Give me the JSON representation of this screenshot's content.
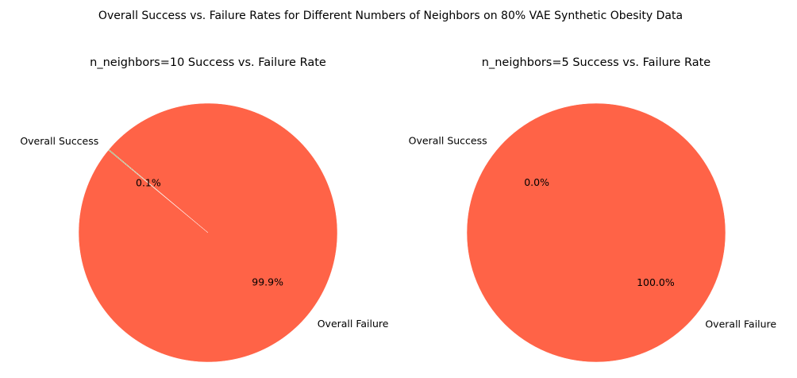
{
  "figure": {
    "suptitle": "Overall Success vs. Failure Rates for Different Numbers of Neighbors on 80% VAE Synthetic Obesity Data"
  },
  "colors": {
    "success": "#2ca02c",
    "failure": "#ff6347",
    "edge": "#ffffff"
  },
  "chart_data": [
    {
      "type": "pie",
      "title": "n_neighbors=10 Success vs. Failure Rate",
      "start_angle_deg": 140,
      "slices": [
        {
          "label": "Overall Success",
          "value": 0.1,
          "pct_label": "0.1%"
        },
        {
          "label": "Overall Failure",
          "value": 99.9,
          "pct_label": "99.9%"
        }
      ]
    },
    {
      "type": "pie",
      "title": "n_neighbors=5 Success vs. Failure Rate",
      "start_angle_deg": 140,
      "slices": [
        {
          "label": "Overall Success",
          "value": 0.0,
          "pct_label": "0.0%"
        },
        {
          "label": "Overall Failure",
          "value": 100.0,
          "pct_label": "100.0%"
        }
      ]
    }
  ]
}
